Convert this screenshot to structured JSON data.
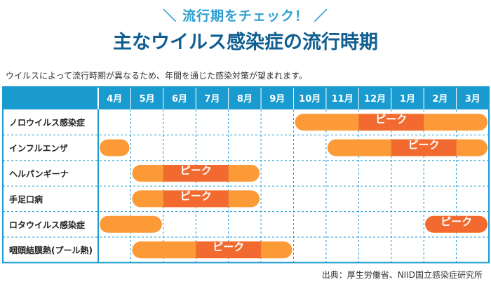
{
  "header": {
    "kicker": "＼ 流行期をチェック！ ／",
    "title": "主なウイルス感染症の流行時期",
    "lead": "ウイルスによって流行時期が異なるため、年間を通じた感染対策が望まれます。"
  },
  "source": "出典：厚生労働省、NIID国立感染症研究所",
  "colors": {
    "header": "#1a9bd0",
    "season": "#fb9a37",
    "peak": "#f26a2f",
    "grid": "#1a9bd0"
  },
  "chart_data": {
    "type": "gantt",
    "categories": [
      "4月",
      "5月",
      "6月",
      "7月",
      "8月",
      "9月",
      "10月",
      "11月",
      "12月",
      "1月",
      "2月",
      "3月"
    ],
    "peak_label": "ピーク",
    "series": [
      {
        "name": "ノロウイルス感染症",
        "season": [
          [
            "10月",
            "3月"
          ]
        ],
        "peak": [
          "12月",
          "1月"
        ]
      },
      {
        "name": "インフルエンザ",
        "season": [
          [
            "4月",
            "4月"
          ],
          [
            "11月",
            "3月"
          ]
        ],
        "peak": [
          "1月",
          "2月"
        ]
      },
      {
        "name": "ヘルパンギーナ",
        "season": [
          [
            "5月",
            "8月"
          ]
        ],
        "peak": [
          "6月",
          "7月"
        ]
      },
      {
        "name": "手足口病",
        "season": [
          [
            "5月",
            "8月"
          ]
        ],
        "peak": [
          "6月",
          "7月"
        ]
      },
      {
        "name": "ロタウイルス感染症",
        "season": [
          [
            "4月",
            "5月"
          ],
          [
            "2月",
            "3月"
          ]
        ],
        "peak": [
          "2月",
          "3月"
        ]
      },
      {
        "name": "咽頭結膜熱(プール熱)",
        "season": [
          [
            "5月",
            "9月"
          ]
        ],
        "peak": [
          "7月",
          "8月"
        ]
      }
    ]
  }
}
